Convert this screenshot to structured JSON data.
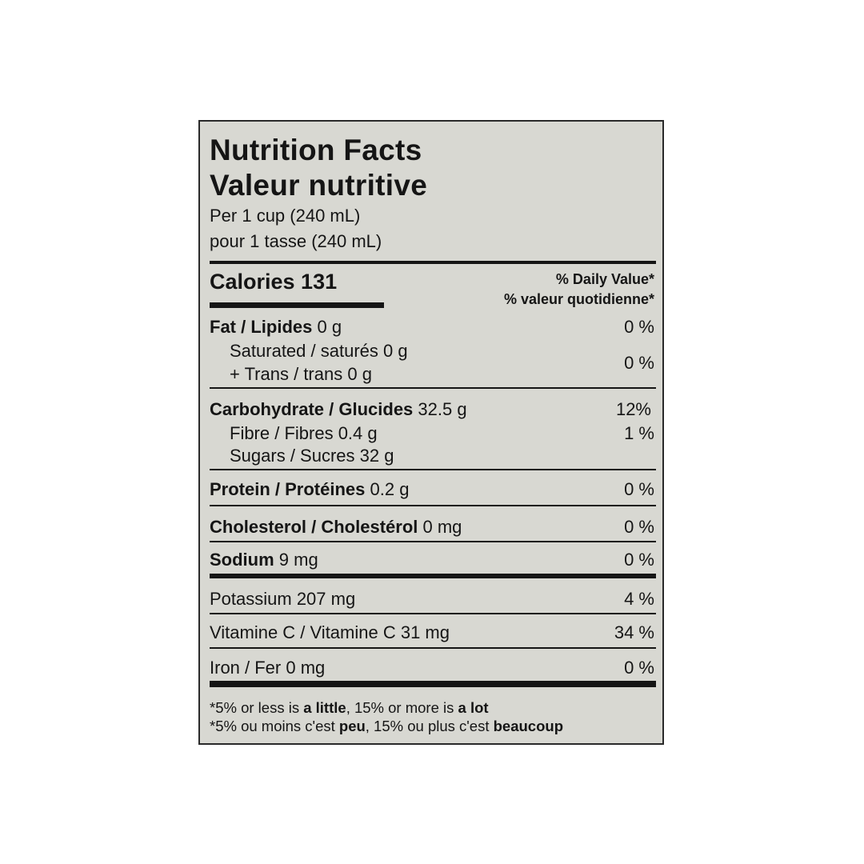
{
  "header": {
    "title_en": "Nutrition Facts",
    "title_fr": "Valeur nutritive",
    "serving_en": "Per 1 cup (240 mL)",
    "serving_fr": "pour 1 tasse (240 mL)"
  },
  "calories": {
    "label": "Calories 131",
    "dv_en": "% Daily Value*",
    "dv_fr": "% valeur quotidienne*"
  },
  "nutrients": {
    "fat": {
      "name": "Fat / Lipides",
      "amount": " 0 g",
      "dv": "0 %"
    },
    "saturated": {
      "name": "Saturated / saturés 0 g"
    },
    "trans": {
      "name": "+ Trans / trans 0 g",
      "dv": "0 %"
    },
    "carb": {
      "name": "Carbohydrate / Glucides",
      "amount": " 32.5 g",
      "dv": "12%"
    },
    "fibre": {
      "name": "Fibre / Fibres 0.4 g",
      "dv": "1 %"
    },
    "sugars": {
      "name": "Sugars / Sucres 32 g"
    },
    "protein": {
      "name": "Protein / Protéines",
      "amount": " 0.2 g",
      "dv": "0 %"
    },
    "cholesterol": {
      "name": "Cholesterol / Cholestérol",
      "amount": " 0 mg",
      "dv": "0 %"
    },
    "sodium": {
      "name": "Sodium",
      "amount": " 9 mg",
      "dv": "0 %"
    },
    "potassium": {
      "name": "Potassium 207 mg",
      "dv": "4 %"
    },
    "vitc": {
      "name": "Vitamine C / Vitamine C  31 mg",
      "dv": "34 %"
    },
    "iron": {
      "name": "Iron / Fer 0 mg",
      "dv": "0 %"
    }
  },
  "footnote": {
    "en_1": "*5% or less is ",
    "en_b1": "a little",
    "en_2": ", 15% or more is ",
    "en_b2": "a lot",
    "fr_1": "*5% ou moins c'est ",
    "fr_b1": "peu",
    "fr_2": ", 15% ou plus c'est ",
    "fr_b2": "beaucoup"
  }
}
